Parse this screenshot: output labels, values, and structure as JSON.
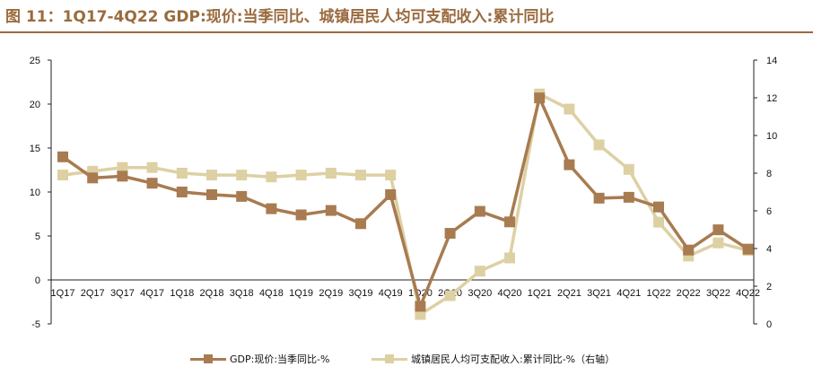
{
  "title": "图 11：1Q17-4Q22 GDP:现价:当季同比、城镇居民人均可支配收入:累计同比",
  "chart_data": {
    "type": "line",
    "categories": [
      "1Q17",
      "2Q17",
      "3Q17",
      "4Q17",
      "1Q18",
      "2Q18",
      "3Q18",
      "4Q18",
      "1Q19",
      "2Q19",
      "3Q19",
      "4Q19",
      "1Q20",
      "2Q20",
      "3Q20",
      "4Q20",
      "1Q21",
      "2Q21",
      "3Q21",
      "4Q21",
      "1Q22",
      "2Q22",
      "3Q22",
      "4Q22"
    ],
    "series": [
      {
        "name": "GDP:现价:当季同比-%",
        "axis": "left",
        "color": "#a87b50",
        "values": [
          14.0,
          11.6,
          11.8,
          11.0,
          10.0,
          9.7,
          9.5,
          8.1,
          7.4,
          7.9,
          6.4,
          9.7,
          -3.0,
          5.3,
          7.8,
          6.6,
          20.7,
          13.1,
          9.3,
          9.4,
          8.3,
          3.4,
          5.7,
          3.5
        ]
      },
      {
        "name": "城镇居民人均可支配收入:累计同比-%（右轴）",
        "axis": "right",
        "color": "#ddd0a3",
        "values": [
          7.9,
          8.1,
          8.3,
          8.3,
          8.0,
          7.9,
          7.9,
          7.8,
          7.9,
          8.0,
          7.9,
          7.9,
          0.5,
          1.5,
          2.8,
          3.5,
          12.2,
          11.4,
          9.5,
          8.2,
          5.4,
          3.6,
          4.3,
          3.9
        ]
      }
    ],
    "left_axis": {
      "ylim": [
        -5,
        25
      ],
      "ticks": [
        -5,
        0,
        5,
        10,
        15,
        20,
        25
      ]
    },
    "right_axis": {
      "ylim": [
        0,
        14
      ],
      "ticks": [
        0,
        2,
        4,
        6,
        8,
        10,
        12,
        14
      ]
    },
    "grid": false,
    "legend_position": "bottom"
  },
  "legend": {
    "gdp_label": "GDP:现价:当季同比-%",
    "income_label": "城镇居民人均可支配收入:累计同比-%（右轴）"
  }
}
